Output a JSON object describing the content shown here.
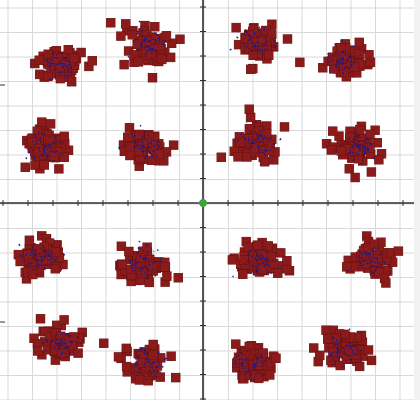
{
  "chart_data": {
    "type": "scatter",
    "title": "",
    "xlabel": "",
    "ylabel": "",
    "xlim": [
      -1.0,
      1.0
    ],
    "ylim": [
      -1.0,
      1.0
    ],
    "grid": true,
    "legend": "none",
    "origin_marker": {
      "x": 0.0,
      "y": 0.0,
      "color": "#3aa63a"
    },
    "colors": {
      "cluster_fill": "#8b1a1a",
      "cluster_edge": "#5a0e0e",
      "inner_points": "#1a1a8e",
      "grid": "#d9d9d9",
      "axis": "#303030"
    },
    "clusters": [
      {
        "row": 1,
        "col": 1,
        "x": -0.72,
        "y": 0.7
      },
      {
        "row": 1,
        "col": 2,
        "x": -0.27,
        "y": 0.81
      },
      {
        "row": 1,
        "col": 3,
        "x": 0.26,
        "y": 0.82
      },
      {
        "row": 1,
        "col": 4,
        "x": 0.7,
        "y": 0.73
      },
      {
        "row": 2,
        "col": 1,
        "x": -0.8,
        "y": 0.28
      },
      {
        "row": 2,
        "col": 2,
        "x": -0.29,
        "y": 0.29
      },
      {
        "row": 2,
        "col": 3,
        "x": 0.27,
        "y": 0.31
      },
      {
        "row": 2,
        "col": 4,
        "x": 0.78,
        "y": 0.28
      },
      {
        "row": 3,
        "col": 1,
        "x": -0.81,
        "y": -0.27
      },
      {
        "row": 3,
        "col": 2,
        "x": -0.3,
        "y": -0.31
      },
      {
        "row": 3,
        "col": 3,
        "x": 0.29,
        "y": -0.3
      },
      {
        "row": 3,
        "col": 4,
        "x": 0.83,
        "y": -0.29
      },
      {
        "row": 4,
        "col": 1,
        "x": -0.72,
        "y": -0.71
      },
      {
        "row": 4,
        "col": 2,
        "x": -0.28,
        "y": -0.82
      },
      {
        "row": 4,
        "col": 3,
        "x": 0.24,
        "y": -0.82
      },
      {
        "row": 4,
        "col": 4,
        "x": 0.71,
        "y": -0.75
      }
    ]
  }
}
